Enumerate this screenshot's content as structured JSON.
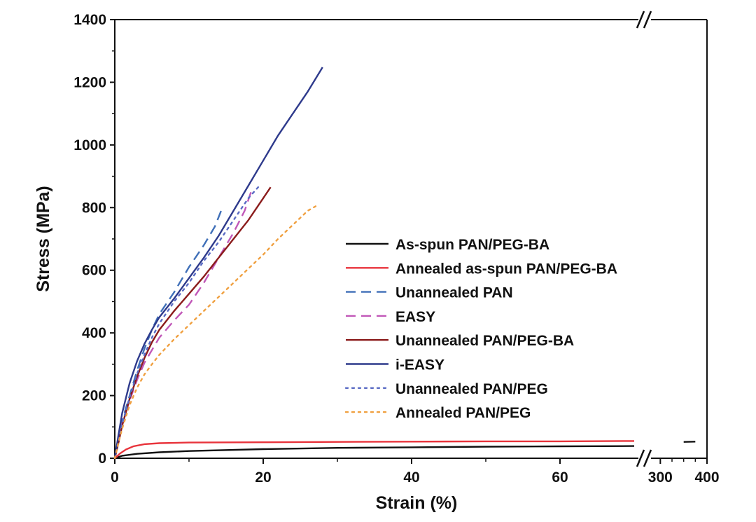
{
  "chart_data": {
    "type": "line",
    "xlabel": "Strain (%)",
    "ylabel": "Stress (MPa)",
    "ylim": [
      0,
      1400
    ],
    "y_ticks": [
      "0",
      "200",
      "400",
      "600",
      "800",
      "1000",
      "1200",
      "1400"
    ],
    "x_axis": {
      "broken": true,
      "segment_1_range": [
        0,
        70
      ],
      "segment_2_range": [
        280,
        400
      ],
      "tick_labels": [
        "0",
        "20",
        "40",
        "60",
        "300",
        "400"
      ]
    },
    "legend_position": "center-right",
    "series": [
      {
        "name": "As-spun PAN/PEG-BA",
        "color": "#111111",
        "dash": "solid",
        "points": [
          [
            0,
            0
          ],
          [
            1,
            8
          ],
          [
            3,
            14
          ],
          [
            6,
            19
          ],
          [
            10,
            23
          ],
          [
            20,
            29
          ],
          [
            30,
            33
          ],
          [
            40,
            35
          ],
          [
            50,
            37
          ],
          [
            60,
            38
          ],
          [
            70,
            39
          ],
          [
            350,
            52
          ],
          [
            375,
            53
          ]
        ]
      },
      {
        "name": "Annealed as-spun PAN/PEG-BA",
        "color": "#e8333b",
        "dash": "solid",
        "points": [
          [
            0,
            0
          ],
          [
            0.7,
            15
          ],
          [
            1.5,
            28
          ],
          [
            2.5,
            38
          ],
          [
            4,
            45
          ],
          [
            6,
            48
          ],
          [
            10,
            50
          ],
          [
            20,
            51
          ],
          [
            30,
            52
          ],
          [
            40,
            53
          ],
          [
            50,
            54
          ],
          [
            60,
            54
          ],
          [
            70,
            55
          ]
        ]
      },
      {
        "name": "Unannealed PAN",
        "color": "#3f6fb8",
        "dash": "dash",
        "points": [
          [
            0,
            0
          ],
          [
            0.5,
            60
          ],
          [
            1,
            120
          ],
          [
            2,
            200
          ],
          [
            3,
            280
          ],
          [
            4,
            350
          ],
          [
            5,
            410
          ],
          [
            6,
            460
          ],
          [
            8,
            530
          ],
          [
            10,
            610
          ],
          [
            12,
            680
          ],
          [
            13.5,
            740
          ],
          [
            14.5,
            800
          ]
        ]
      },
      {
        "name": "EASY",
        "color": "#c158b8",
        "dash": "dash",
        "points": [
          [
            0,
            0
          ],
          [
            0.5,
            60
          ],
          [
            1,
            110
          ],
          [
            2,
            185
          ],
          [
            3,
            250
          ],
          [
            4,
            305
          ],
          [
            5,
            345
          ],
          [
            6,
            385
          ],
          [
            8,
            440
          ],
          [
            10,
            490
          ],
          [
            12,
            560
          ],
          [
            14,
            640
          ],
          [
            16,
            720
          ],
          [
            17.5,
            790
          ],
          [
            18.5,
            860
          ]
        ]
      },
      {
        "name": "Unannealed PAN/PEG-BA",
        "color": "#8b1c1c",
        "dash": "solid",
        "points": [
          [
            0,
            0
          ],
          [
            0.5,
            50
          ],
          [
            1,
            105
          ],
          [
            2,
            190
          ],
          [
            3,
            260
          ],
          [
            4,
            320
          ],
          [
            5,
            370
          ],
          [
            6,
            410
          ],
          [
            8,
            470
          ],
          [
            10,
            525
          ],
          [
            12,
            580
          ],
          [
            14,
            640
          ],
          [
            16,
            700
          ],
          [
            18,
            760
          ],
          [
            20,
            830
          ],
          [
            21,
            865
          ]
        ]
      },
      {
        "name": "i-EASY",
        "color": "#2e3a8c",
        "dash": "solid",
        "points": [
          [
            0,
            0
          ],
          [
            0.5,
            75
          ],
          [
            1,
            145
          ],
          [
            2,
            240
          ],
          [
            3,
            310
          ],
          [
            4,
            365
          ],
          [
            5,
            410
          ],
          [
            6,
            450
          ],
          [
            8,
            510
          ],
          [
            10,
            575
          ],
          [
            12,
            640
          ],
          [
            14,
            710
          ],
          [
            16,
            790
          ],
          [
            18,
            870
          ],
          [
            20,
            950
          ],
          [
            22,
            1030
          ],
          [
            24,
            1100
          ],
          [
            26,
            1170
          ],
          [
            28,
            1248
          ]
        ]
      },
      {
        "name": "Unannealed PAN/PEG",
        "color": "#5a6bc4",
        "dash": "dot",
        "points": [
          [
            0,
            0
          ],
          [
            0.5,
            55
          ],
          [
            1,
            110
          ],
          [
            2,
            195
          ],
          [
            3,
            270
          ],
          [
            4,
            330
          ],
          [
            5,
            385
          ],
          [
            6,
            430
          ],
          [
            8,
            500
          ],
          [
            10,
            560
          ],
          [
            12,
            630
          ],
          [
            14,
            690
          ],
          [
            16,
            760
          ],
          [
            18,
            830
          ],
          [
            19.5,
            870
          ]
        ]
      },
      {
        "name": "Annealed PAN/PEG",
        "color": "#f0a040",
        "dash": "dot",
        "points": [
          [
            0,
            0
          ],
          [
            0.5,
            50
          ],
          [
            1,
            95
          ],
          [
            2,
            170
          ],
          [
            3,
            225
          ],
          [
            4,
            268
          ],
          [
            5,
            300
          ],
          [
            6,
            330
          ],
          [
            8,
            380
          ],
          [
            10,
            425
          ],
          [
            12,
            470
          ],
          [
            14,
            515
          ],
          [
            16,
            560
          ],
          [
            18,
            605
          ],
          [
            20,
            650
          ],
          [
            22,
            700
          ],
          [
            24,
            745
          ],
          [
            26,
            790
          ],
          [
            27.5,
            810
          ]
        ]
      }
    ]
  }
}
